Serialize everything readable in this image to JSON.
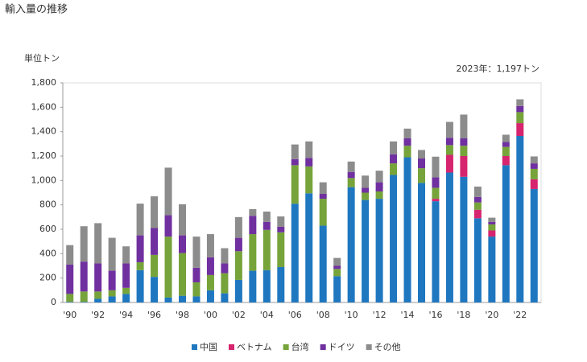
{
  "chart_data": {
    "type": "stacked-bar",
    "title": "輸入量の推移",
    "y_label": "単位トン",
    "annotation": "2023年：1,197トン",
    "categories": [
      "'90",
      null,
      "'92",
      null,
      "'94",
      null,
      "'96",
      null,
      "'98",
      null,
      "'00",
      null,
      "'02",
      null,
      "'04",
      null,
      "'06",
      null,
      "'08",
      null,
      "'10",
      null,
      "'12",
      null,
      "'14",
      null,
      "'16",
      null,
      "'18",
      null,
      "'20",
      null,
      "'22",
      null
    ],
    "series": [
      {
        "name": "中国",
        "color": "#1f77c0",
        "values": [
          5,
          5,
          30,
          50,
          70,
          265,
          210,
          40,
          55,
          50,
          100,
          75,
          185,
          260,
          265,
          290,
          810,
          895,
          630,
          215,
          945,
          840,
          850,
          1045,
          1190,
          980,
          830,
          1065,
          1030,
          690,
          540,
          1125,
          1365,
          930
        ]
      },
      {
        "name": "ベトナム",
        "color": "#d6246e",
        "values": [
          0,
          0,
          0,
          0,
          0,
          0,
          0,
          0,
          0,
          0,
          0,
          0,
          0,
          0,
          0,
          0,
          0,
          0,
          0,
          0,
          0,
          0,
          0,
          0,
          0,
          0,
          20,
          145,
          170,
          70,
          50,
          75,
          105,
          80
        ]
      },
      {
        "name": "台湾",
        "color": "#76a33a",
        "values": [
          65,
          85,
          60,
          50,
          50,
          65,
          180,
          500,
          350,
          115,
          125,
          165,
          235,
          300,
          330,
          285,
          315,
          220,
          220,
          60,
          75,
          60,
          60,
          95,
          95,
          120,
          90,
          80,
          85,
          60,
          50,
          75,
          90,
          85
        ]
      },
      {
        "name": "ドイツ",
        "color": "#7030a0",
        "values": [
          240,
          245,
          230,
          160,
          200,
          220,
          220,
          175,
          145,
          120,
          145,
          80,
          110,
          150,
          65,
          45,
          50,
          70,
          40,
          25,
          50,
          40,
          75,
          75,
          60,
          80,
          85,
          60,
          60,
          45,
          20,
          40,
          50,
          45
        ]
      },
      {
        "name": "その他",
        "color": "#8c8c8c",
        "values": [
          160,
          290,
          330,
          270,
          140,
          260,
          260,
          390,
          255,
          255,
          190,
          125,
          170,
          55,
          85,
          85,
          120,
          135,
          95,
          65,
          85,
          100,
          95,
          105,
          80,
          70,
          170,
          130,
          195,
          85,
          35,
          60,
          55,
          57
        ]
      }
    ],
    "ylim": [
      0,
      1800
    ],
    "yticks": [
      0,
      200,
      400,
      600,
      800,
      {
        "value": 1000,
        "label": "1,000"
      },
      {
        "value": 1200,
        "label": "1,200"
      },
      {
        "value": 1400,
        "label": "1,400"
      },
      {
        "value": 1600,
        "label": "1,600"
      },
      {
        "value": 1800,
        "label": "1,800"
      }
    ]
  }
}
